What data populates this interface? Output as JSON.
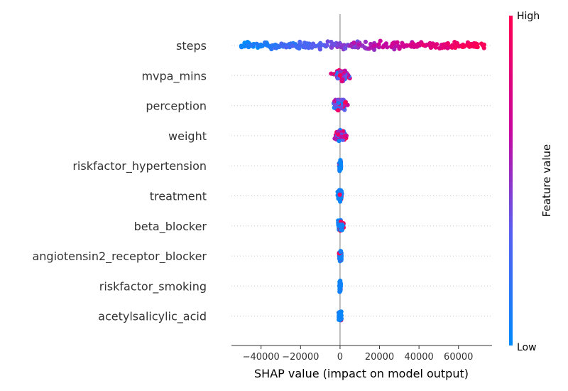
{
  "chart_data": {
    "type": "scatter",
    "subtype": "shap-beeswarm",
    "title": "",
    "xlabel": "SHAP value (impact on model output)",
    "xlim": [
      -55000,
      77000
    ],
    "xticks": [
      -40000,
      -20000,
      0,
      20000,
      40000,
      60000
    ],
    "xtick_labels": [
      "−40000",
      "−20000",
      "0",
      "20000",
      "40000",
      "60000"
    ],
    "features": [
      "steps",
      "mvpa_mins",
      "perception",
      "weight",
      "riskfactor_hypertension",
      "treatment",
      "beta_blocker",
      "angiotensin2_receptor_blocker",
      "riskfactor_smoking",
      "acetylsalicylic_acid"
    ],
    "series": [
      {
        "feature": "steps",
        "shap_range": [
          -50000,
          73000
        ],
        "count": 320
      },
      {
        "feature": "mvpa_mins",
        "shap_range": [
          -4500,
          5500
        ],
        "count": 110
      },
      {
        "feature": "perception",
        "shap_range": [
          -5000,
          4000
        ],
        "count": 110
      },
      {
        "feature": "weight",
        "shap_range": [
          -3500,
          4000
        ],
        "count": 110
      },
      {
        "feature": "riskfactor_hypertension",
        "shap_range": [
          -500,
          700
        ],
        "count": 90
      },
      {
        "feature": "treatment",
        "shap_range": [
          -1200,
          1200
        ],
        "count": 90
      },
      {
        "feature": "beta_blocker",
        "shap_range": [
          -1500,
          1800
        ],
        "count": 90
      },
      {
        "feature": "angiotensin2_receptor_blocker",
        "shap_range": [
          -500,
          900
        ],
        "count": 90
      },
      {
        "feature": "riskfactor_smoking",
        "shap_range": [
          -400,
          400
        ],
        "count": 90
      },
      {
        "feature": "acetylsalicylic_acid",
        "shap_range": [
          -700,
          900
        ],
        "count": 90
      }
    ],
    "colorbar": {
      "title": "Feature value",
      "high_label": "High",
      "low_label": "Low",
      "colors": [
        "#008afb",
        "#7f49e6",
        "#c8069f",
        "#ff0051"
      ]
    },
    "grid": false,
    "legend": "colorbar-right"
  }
}
